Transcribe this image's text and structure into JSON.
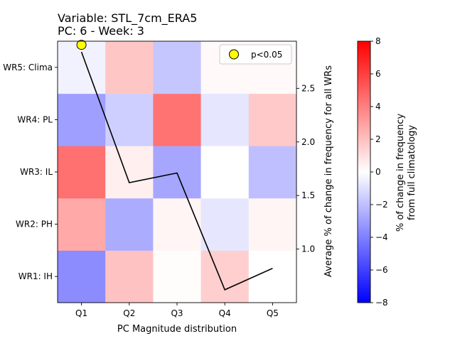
{
  "chart_data": {
    "type": "heatmap",
    "title_line1": "Variable: STL_7cm_ERA5",
    "title_line2": "PC: 6 - Week: 3",
    "xlabel": "PC Magnitude distribution",
    "categories_x": [
      "Q1",
      "Q2",
      "Q3",
      "Q4",
      "Q5"
    ],
    "categories_y": [
      "WR1: IH",
      "WR2: PH",
      "WR3: IL",
      "WR4: PL",
      "WR5: Clima"
    ],
    "values": [
      [
        -3.6,
        1.9,
        0.1,
        1.5,
        0.0
      ],
      [
        2.7,
        -2.6,
        0.3,
        -0.8,
        0.3
      ],
      [
        4.5,
        0.5,
        -2.8,
        0.0,
        -2.0
      ],
      [
        -3.0,
        -1.5,
        4.4,
        -0.8,
        1.7
      ],
      [
        -0.4,
        1.8,
        -1.8,
        0.2,
        0.2
      ]
    ],
    "line_series": {
      "name": "Average % of change in frequency for all WRs",
      "values": [
        2.84,
        1.62,
        1.71,
        0.62,
        0.82
      ]
    },
    "significant_points": [
      {
        "x": "Q1",
        "y": "WR5: Clima"
      }
    ],
    "right_axis": {
      "label": "Average % of change in frequency for all WRs",
      "ticks": [
        "1.0",
        "1.5",
        "2.0",
        "2.5"
      ],
      "tick_values": [
        1.0,
        1.5,
        2.0,
        2.5
      ],
      "ylim": [
        0.5,
        2.94
      ]
    },
    "colorbar": {
      "label_line1": "% of change in frequency",
      "label_line2": "from full climatology",
      "ticks": [
        "8",
        "6",
        "4",
        "2",
        "0",
        "−2",
        "−4",
        "−6",
        "−8"
      ],
      "tick_values": [
        8,
        6,
        4,
        2,
        0,
        -2,
        -4,
        -6,
        -8
      ],
      "vmin": -8,
      "vmax": 8
    },
    "legend": {
      "label": "p<0.05",
      "position": "upper right"
    },
    "colors": {
      "marker_fill": "#ffff00",
      "line": "#000000"
    }
  }
}
